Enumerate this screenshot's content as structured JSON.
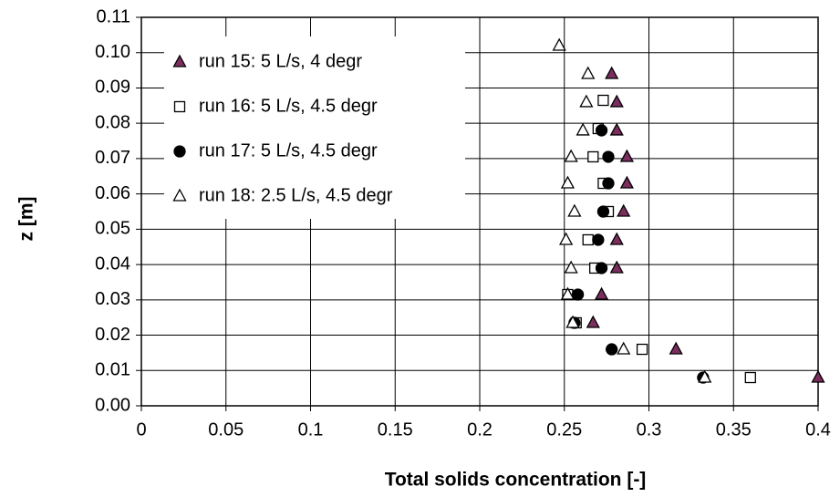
{
  "chart_data": {
    "type": "scatter",
    "xlabel": "Total solids concentration [-]",
    "ylabel": "z [m]",
    "xlim": [
      0,
      0.4
    ],
    "xticks": [
      0,
      0.05,
      0.1,
      0.15,
      0.2,
      0.25,
      0.3,
      0.35,
      0.4
    ],
    "ylim": [
      0,
      0.11
    ],
    "yticks": [
      {
        "value": 0,
        "label": "0.00"
      },
      {
        "value": 0.01,
        "label": "0.01"
      },
      {
        "value": 0.02,
        "label": "0.02"
      },
      {
        "value": 0.03,
        "label": "0.03"
      },
      {
        "value": 0.04,
        "label": "0.04"
      },
      {
        "value": 0.05,
        "label": "0.05"
      },
      {
        "value": 0.06,
        "label": "0.06"
      },
      {
        "value": 0.07,
        "label": "0.07"
      },
      {
        "value": 0.08,
        "label": "0.08"
      },
      {
        "value": 0.09,
        "label": "0.09"
      },
      {
        "value": 0.1,
        "label": "0.10"
      },
      {
        "value": 0.11,
        "label": "0.11"
      }
    ],
    "grid": true,
    "legend": "upper left",
    "series": [
      {
        "name": "run 15: 5 L/s, 4 degr",
        "marker": "triangle",
        "color": "#7b2d5e",
        "x": [
          0.278,
          0.281,
          0.281,
          0.287,
          0.287,
          0.285,
          0.281,
          0.281,
          0.272,
          0.267,
          0.316,
          0.4
        ],
        "values": [
          0.094,
          0.086,
          0.078,
          0.0705,
          0.063,
          0.055,
          0.047,
          0.039,
          0.0315,
          0.0235,
          0.016,
          0.008
        ]
      },
      {
        "name": "run 16: 5 L/s, 4.5 degr",
        "marker": "square",
        "color": "#ffffff",
        "x": [
          0.273,
          0.27,
          0.267,
          0.273,
          0.276,
          0.264,
          0.268,
          0.252,
          0.257,
          0.296,
          0.36
        ],
        "values": [
          0.0865,
          0.0785,
          0.0705,
          0.063,
          0.055,
          0.047,
          0.039,
          0.0315,
          0.0235,
          0.016,
          0.008
        ]
      },
      {
        "name": "run 17: 5 L/s, 4.5 degr",
        "marker": "circle",
        "color": "#000000",
        "x": [
          0.272,
          0.276,
          0.276,
          0.273,
          0.27,
          0.272,
          0.258,
          0.256,
          0.278,
          0.332
        ],
        "values": [
          0.078,
          0.0705,
          0.063,
          0.055,
          0.047,
          0.039,
          0.0315,
          0.0235,
          0.016,
          0.008
        ]
      },
      {
        "name": "run 18: 2.5 L/s, 4.5 degr",
        "marker": "triangle",
        "color": "#ffffff",
        "x": [
          0.247,
          0.264,
          0.263,
          0.261,
          0.254,
          0.252,
          0.256,
          0.251,
          0.254,
          0.252,
          0.255,
          0.285,
          0.333
        ],
        "values": [
          0.102,
          0.094,
          0.086,
          0.078,
          0.0705,
          0.063,
          0.055,
          0.047,
          0.039,
          0.0315,
          0.0235,
          0.016,
          0.008
        ]
      }
    ]
  }
}
